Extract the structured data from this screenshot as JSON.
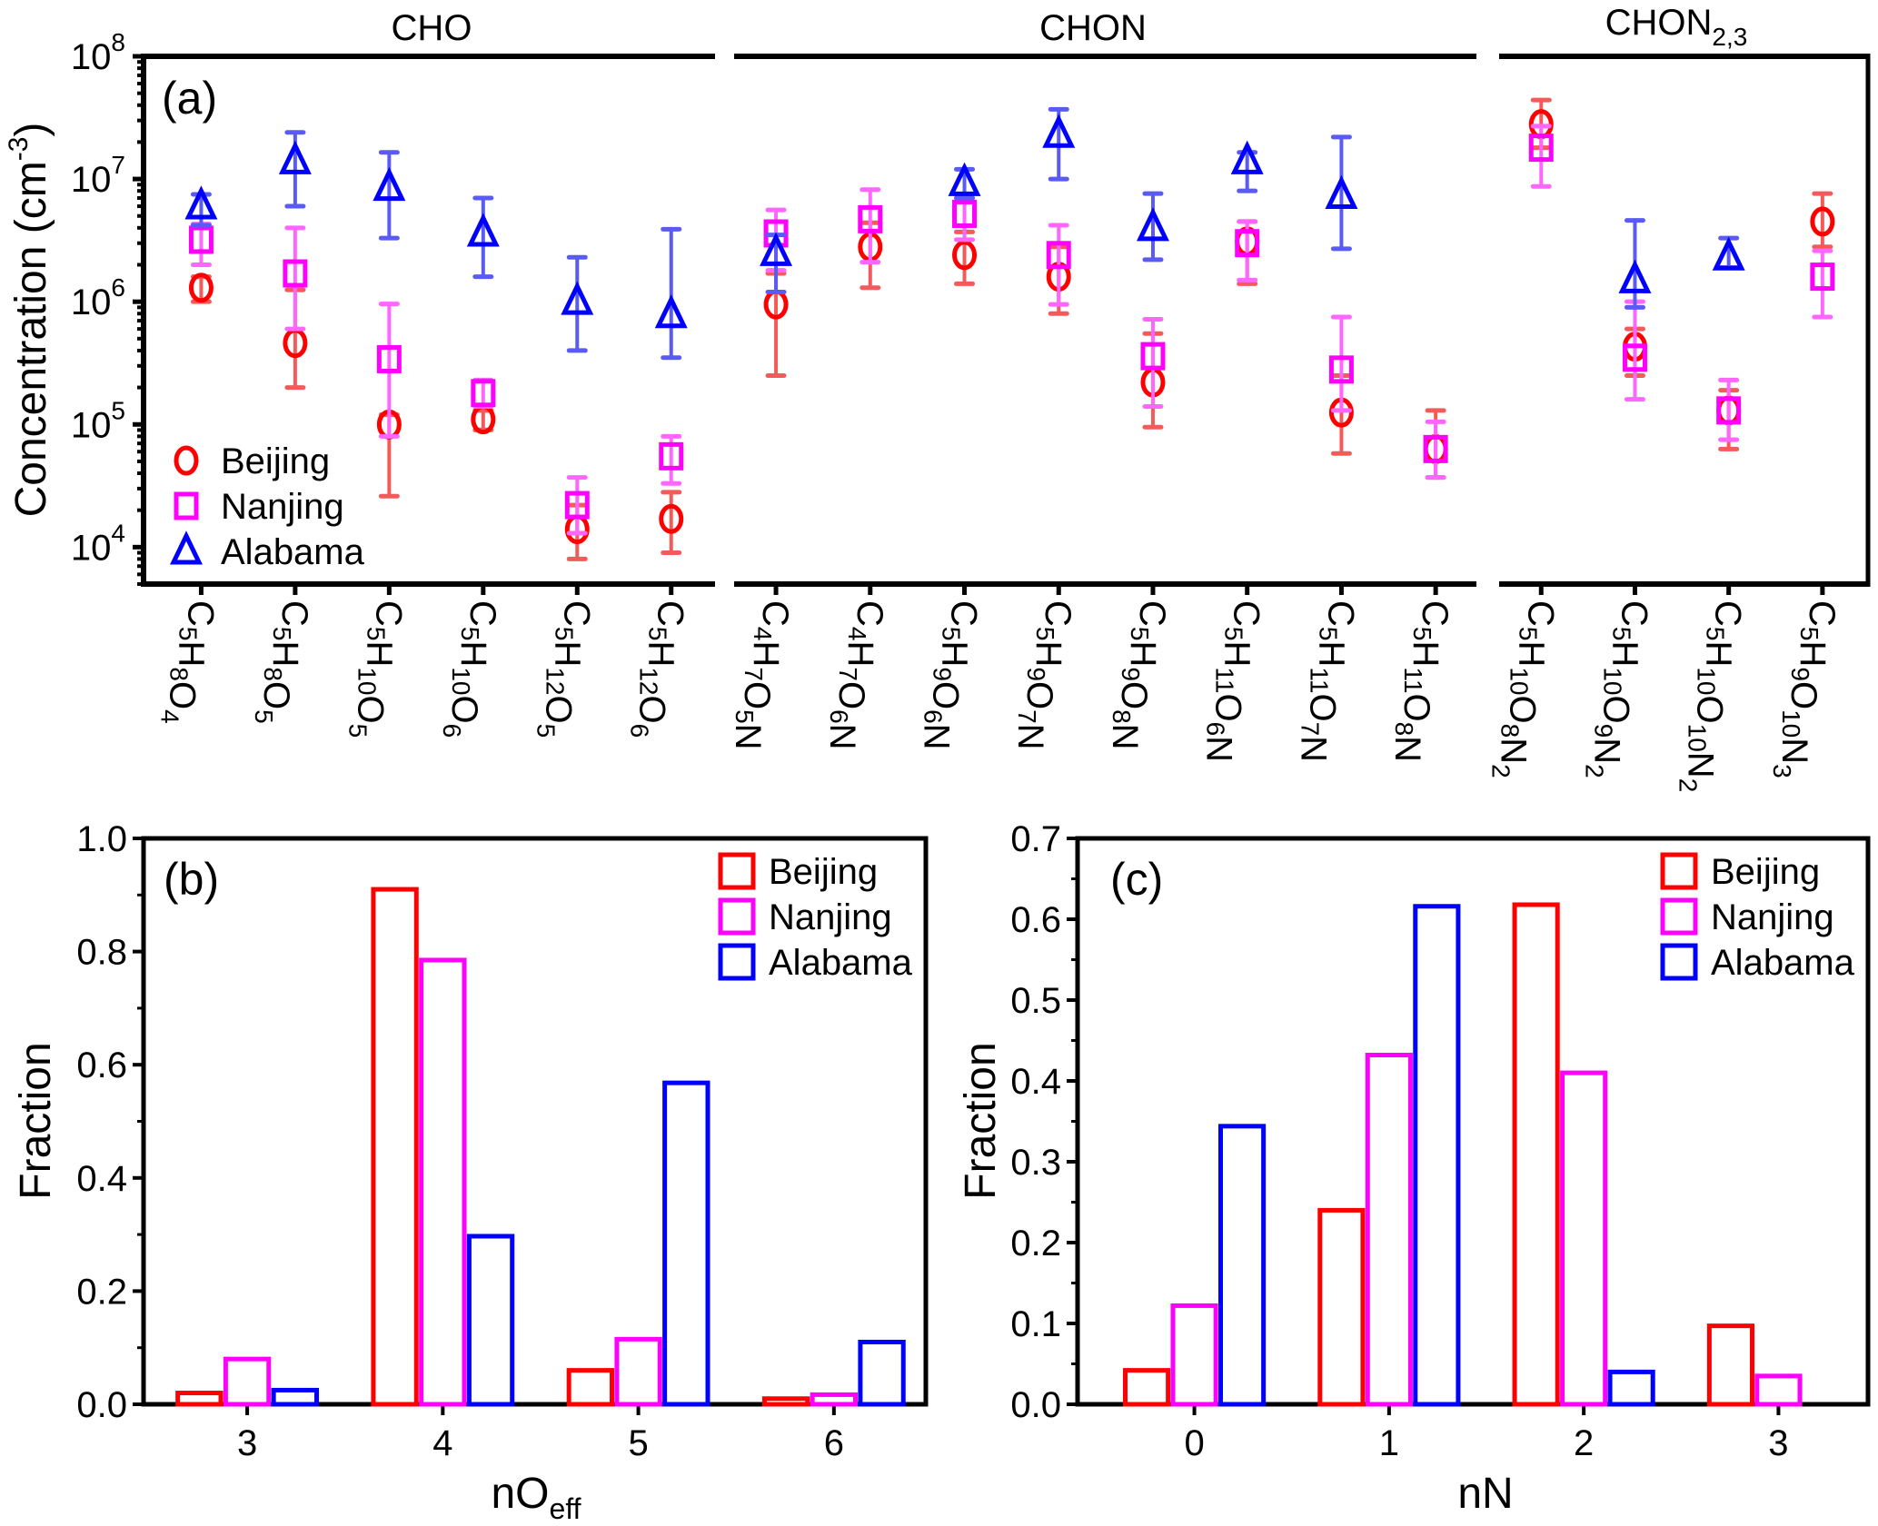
{
  "colors": {
    "Beijing": "#ff0000",
    "Nanjing": "#ff00ff",
    "Alabama": "#0000ff",
    "Beijing_err": "#f55a5a",
    "Nanjing_err": "#ff66ff",
    "Alabama_err": "#5a5af5"
  },
  "chart_data": [
    {
      "panel": "(a)",
      "type": "scatter",
      "yscale": "log",
      "ylim": [
        5000,
        100000000
      ],
      "ylabel_parts": [
        "Concentration (cm",
        "-3",
        ")"
      ],
      "yticks": [
        {
          "base": "10",
          "exp": "4",
          "value": 10000
        },
        {
          "base": "10",
          "exp": "5",
          "value": 100000
        },
        {
          "base": "10",
          "exp": "6",
          "value": 1000000
        },
        {
          "base": "10",
          "exp": "7",
          "value": 10000000
        },
        {
          "base": "10",
          "exp": "8",
          "value": 100000000
        }
      ],
      "groups": [
        {
          "label": "CHO",
          "sub": "",
          "categories": [
            "C5H8O4",
            "C5H8O5",
            "C5H10O5",
            "C5H10O6",
            "C5H12O5",
            "C5H12O6"
          ]
        },
        {
          "label": "CHON",
          "sub": "",
          "categories": [
            "C4H7O5N",
            "C4H7O6N",
            "C5H9O6N",
            "C5H9O7N",
            "C5H9O8N",
            "C5H11O6N",
            "C5H11O7N",
            "C5H11O8N"
          ]
        },
        {
          "label": "CHON",
          "sub": "2,3",
          "categories": [
            "C5H10O8N2",
            "C5H10O9N2",
            "C5H10O10N2",
            "C5H9O10N3"
          ]
        }
      ],
      "legend": [
        "Beijing",
        "Nanjing",
        "Alabama"
      ],
      "legend_position": "bottom-left",
      "series": [
        {
          "name": "Beijing",
          "marker": "circle",
          "values": [
            1300000,
            460000,
            100000,
            110000,
            14000,
            17000,
            950000,
            2800000,
            2400000,
            1600000,
            220000,
            3100000,
            125000,
            63000,
            28000000,
            430000,
            130000,
            4500000
          ],
          "err_low": [
            1000000,
            200000,
            26000,
            90000,
            8000,
            9000,
            250000,
            1300000,
            1400000,
            800000,
            95000,
            1400000,
            58000,
            37000,
            18000000,
            250000,
            63000,
            2800000
          ],
          "err_high": [
            1600000,
            1250000,
            120000,
            130000,
            22000,
            28000,
            1700000,
            4400000,
            3700000,
            2800000,
            550000,
            4500000,
            250000,
            130000,
            44000000,
            600000,
            190000,
            7600000
          ]
        },
        {
          "name": "Nanjing",
          "marker": "square",
          "values": [
            3200000,
            1700000,
            340000,
            180000,
            22000,
            55000,
            3600000,
            4700000,
            5200000,
            2400000,
            360000,
            3000000,
            280000,
            63000,
            18000000,
            350000,
            130000,
            1600000
          ],
          "err_low": [
            2000000,
            600000,
            80000,
            140000,
            13000,
            33000,
            1800000,
            2100000,
            3200000,
            950000,
            140000,
            1500000,
            130000,
            37000,
            8700000,
            160000,
            75000,
            750000
          ],
          "err_high": [
            4300000,
            4000000,
            960000,
            230000,
            37000,
            80000,
            5600000,
            8200000,
            7000000,
            4200000,
            720000,
            4500000,
            750000,
            105000,
            27000000,
            1000000,
            230000,
            2600000
          ]
        },
        {
          "name": "Alabama",
          "marker": "triangle",
          "values": [
            6000000,
            14000000,
            8500000,
            3600000,
            1000000,
            780000,
            2500000,
            null,
            9300000,
            23000000,
            4000000,
            14000000,
            7300000,
            null,
            null,
            1500000,
            2300000,
            null
          ],
          "err_low": [
            4200000,
            6000000,
            3300000,
            1600000,
            400000,
            350000,
            1200000,
            null,
            7000000,
            10000000,
            2200000,
            8000000,
            2700000,
            null,
            null,
            900000,
            1900000,
            null
          ],
          "err_high": [
            7500000,
            24000000,
            16500000,
            7000000,
            2300000,
            3900000,
            3500000,
            null,
            12000000,
            37000000,
            7600000,
            16500000,
            22000000,
            null,
            null,
            4600000,
            3300000,
            null
          ]
        }
      ]
    },
    {
      "panel": "(b)",
      "type": "bar",
      "categories": [
        "3",
        "4",
        "5",
        "6"
      ],
      "xlabel_parts": [
        "nO",
        "eff"
      ],
      "ylabel": "Fraction",
      "ylim": [
        0,
        1.0
      ],
      "yticks": [
        "0.0",
        "0.2",
        "0.4",
        "0.6",
        "0.8",
        "1.0"
      ],
      "legend": [
        "Beijing",
        "Nanjing",
        "Alabama"
      ],
      "legend_position": "top-right",
      "series": [
        {
          "name": "Beijing",
          "values": [
            0.02,
            0.91,
            0.06,
            0.01
          ]
        },
        {
          "name": "Nanjing",
          "values": [
            0.08,
            0.785,
            0.115,
            0.017
          ]
        },
        {
          "name": "Alabama",
          "values": [
            0.025,
            0.297,
            0.568,
            0.11
          ]
        }
      ]
    },
    {
      "panel": "(c)",
      "type": "bar",
      "categories": [
        "0",
        "1",
        "2",
        "3"
      ],
      "xlabel": "nN",
      "ylabel": "Fraction",
      "ylim": [
        0,
        0.7
      ],
      "yticks": [
        "0.0",
        "0.1",
        "0.2",
        "0.3",
        "0.4",
        "0.5",
        "0.6",
        "0.7"
      ],
      "legend": [
        "Beijing",
        "Nanjing",
        "Alabama"
      ],
      "legend_position": "top-right",
      "series": [
        {
          "name": "Beijing",
          "values": [
            0.042,
            0.24,
            0.618,
            0.097
          ]
        },
        {
          "name": "Nanjing",
          "values": [
            0.122,
            0.432,
            0.41,
            0.035
          ]
        },
        {
          "name": "Alabama",
          "values": [
            0.344,
            0.616,
            0.04,
            0
          ]
        }
      ]
    }
  ]
}
